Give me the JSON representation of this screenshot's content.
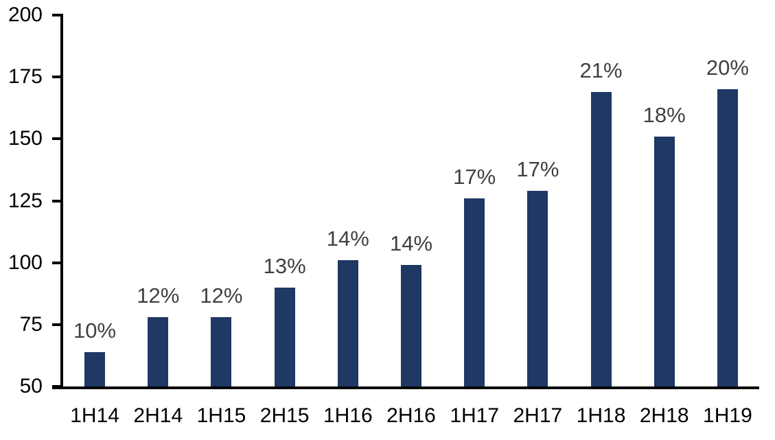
{
  "chart_data": {
    "type": "bar",
    "categories": [
      "1H14",
      "2H14",
      "1H15",
      "2H15",
      "1H16",
      "2H16",
      "1H17",
      "2H17",
      "1H18",
      "2H18",
      "1H19"
    ],
    "values": [
      64,
      78,
      78,
      90,
      101,
      99,
      126,
      129,
      169,
      151,
      170
    ],
    "data_labels": [
      "10%",
      "12%",
      "12%",
      "13%",
      "14%",
      "14%",
      "17%",
      "17%",
      "21%",
      "18%",
      "20%"
    ],
    "title": "",
    "xlabel": "",
    "ylabel": "",
    "ylim": [
      50,
      200
    ],
    "yticks": [
      50,
      75,
      100,
      125,
      150,
      175,
      200
    ],
    "grid": false,
    "legend": false,
    "layout_hints": {
      "bar_color": "#1F3864",
      "data_label_color": "#404040",
      "axis_text_color": "#000000",
      "axis_line_color": "#000000",
      "background_color": "#FFFFFF"
    }
  }
}
